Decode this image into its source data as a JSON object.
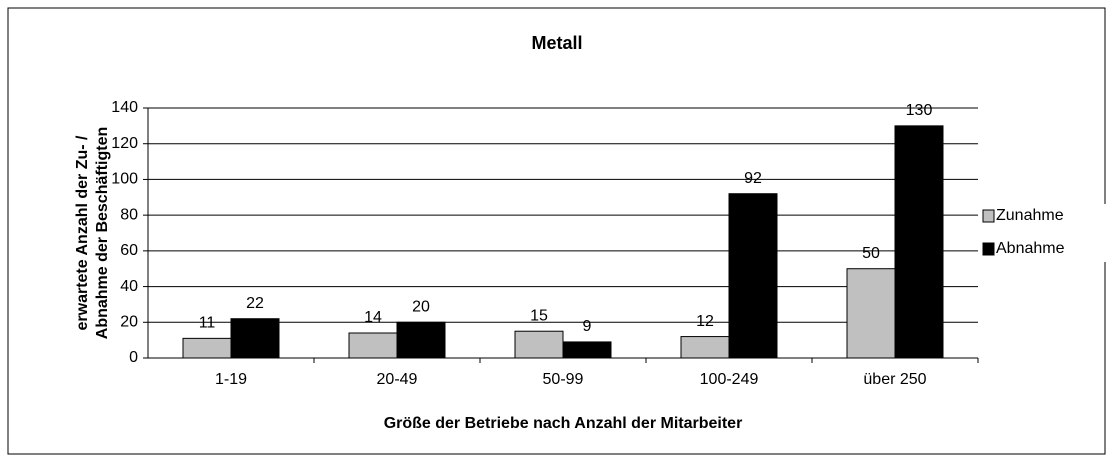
{
  "chart_data": {
    "type": "bar",
    "title": "Metall",
    "x_label": "Größe der Betriebe nach Anzahl der Mitarbeiter",
    "y_label": [
      "erwartete Anzahl der Zu- /",
      "Abnahme der Beschäftigten"
    ],
    "categories": [
      "1-19",
      "20-49",
      "50-99",
      "100-249",
      "über 250"
    ],
    "series": [
      {
        "name": "Zunahme",
        "color": "#c0c0c0",
        "values": [
          11,
          14,
          15,
          12,
          50
        ]
      },
      {
        "name": "Abnahme",
        "color": "#000000",
        "values": [
          22,
          20,
          9,
          92,
          130
        ]
      }
    ],
    "ylim": [
      0,
      140
    ],
    "yticks": [
      0,
      20,
      40,
      60,
      80,
      100,
      120,
      140
    ],
    "grid": true,
    "legend": "right"
  }
}
